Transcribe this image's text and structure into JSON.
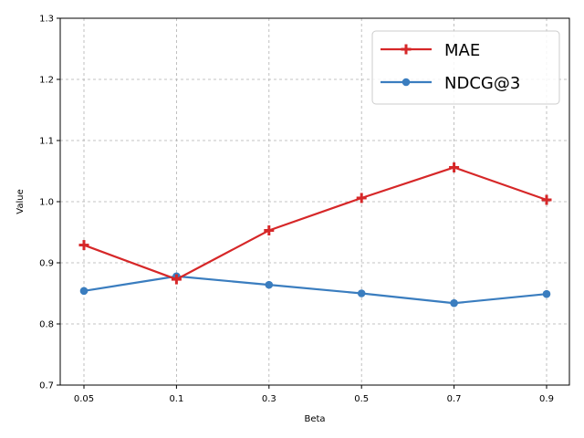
{
  "chart_data": {
    "type": "line",
    "categories": [
      "0.05",
      "0.1",
      "0.3",
      "0.5",
      "0.7",
      "0.9"
    ],
    "series": [
      {
        "name": "MAE",
        "color": "#d62728",
        "marker": "plus",
        "values": [
          0.929,
          0.873,
          0.953,
          1.006,
          1.056,
          1.003
        ]
      },
      {
        "name": "NDCG@3",
        "color": "#3a7dbf",
        "marker": "circle",
        "values": [
          0.854,
          0.878,
          0.864,
          0.85,
          0.834,
          0.849
        ]
      }
    ],
    "xlabel": "Beta",
    "ylabel": "Value",
    "ylim": [
      0.7,
      1.3
    ],
    "yticks": [
      "0.7",
      "0.8",
      "0.9",
      "1.0",
      "1.1",
      "1.2",
      "1.3"
    ],
    "grid": true,
    "legend": "top-right"
  }
}
